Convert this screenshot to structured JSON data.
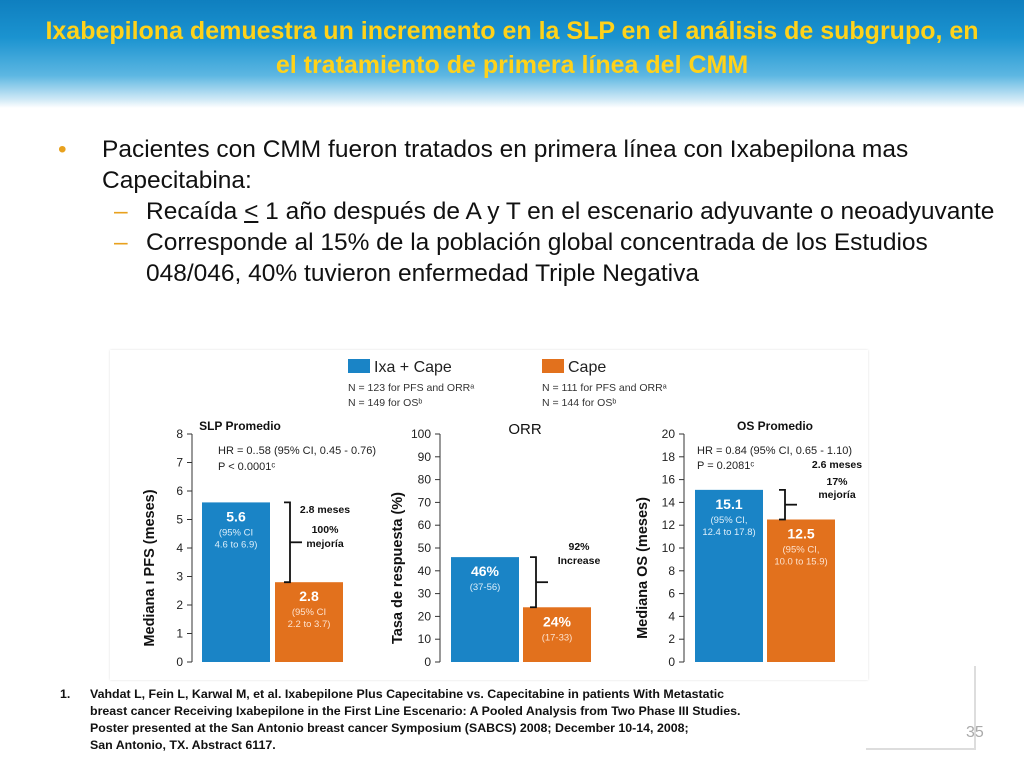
{
  "slide": {
    "title": "Ixabepilona demuestra un incremento en la SLP en el análisis de subgrupo, en el tratamiento de primera línea del CMM",
    "bullet1": "Pacientes con CMM fueron tratados en primera línea con Ixabepilona mas Capecitabina:",
    "sub1_pre": "Recaída ",
    "sub1_le": "<",
    "sub1_post": " 1 año después de A y T en el escenario adyuvante o neoadyuvante",
    "sub2": "Corresponde al 15% de la población global concentrada de los Estudios 048/046, 40% tuvieron enfermedad Triple Negativa",
    "bullet_marker": "•",
    "dash_marker": "–",
    "ref_num": "1.",
    "ref_lines": [
      "Vahdat L, Fein L, Karwal M, et al. Ixabepilone Plus Capecitabine vs. Capecitabine in patients With Metastatic",
      "breast cancer Receiving Ixabepilone in the First Line Escenario: A Pooled Analysis from Two Phase III Studies.",
      "Poster presented at the San Antonio breast cancer Symposium (SABCS) 2008; December 10-14, 2008;",
      "San Antonio, TX. Abstract 6117."
    ],
    "page_number": "35"
  },
  "legend": {
    "ixa": {
      "name": "Ixa + Cape",
      "n1": "N = 123 for PFS and ORRᵃ",
      "n2": "N = 149 for OSᵇ"
    },
    "cape": {
      "name": "Cape",
      "n1": "N = 111 for PFS and ORRᵃ",
      "n2": "N = 144 for OSᵇ"
    }
  },
  "colors": {
    "ixa": "#1a84c6",
    "cape": "#e2711d",
    "title": "#ffd21a",
    "bullet": "#e8a11e"
  },
  "chart_data": [
    {
      "type": "bar",
      "title": "SLP Promedio",
      "ylabel": "Mediana ı PFS (meses)",
      "ylim": [
        0,
        8
      ],
      "ticks": [
        "0",
        "1",
        "2",
        "3",
        "4",
        "5",
        "6",
        "7",
        "8"
      ],
      "series": [
        {
          "name": "Ixa + Cape",
          "value": 5.6,
          "label": "5.6",
          "ci": [
            "(95% CI",
            "4.6 to 6.9)"
          ]
        },
        {
          "name": "Cape",
          "value": 2.8,
          "label": "2.8",
          "ci": [
            "(95% CI",
            "2.2 to 3.7)"
          ]
        }
      ],
      "stats": [
        "HR = 0..58 (95% CI, 0.45 - 0.76)",
        "P  < 0.0001ᶜ"
      ],
      "annotation": [
        "2.8 meses",
        "100%",
        "mejoría"
      ]
    },
    {
      "type": "bar",
      "title": "ORR",
      "ylabel": "Tasa de respuesta (%)",
      "ylim": [
        0,
        100
      ],
      "ticks": [
        "0",
        "10",
        "20",
        "30",
        "40",
        "50",
        "60",
        "70",
        "80",
        "90",
        "100"
      ],
      "series": [
        {
          "name": "Ixa + Cape",
          "value": 46,
          "label": "46%",
          "ci": [
            "(37-56)"
          ]
        },
        {
          "name": "Cape",
          "value": 24,
          "label": "24%",
          "ci": [
            "(17-33)"
          ]
        }
      ],
      "stats": [],
      "annotation": [
        "92%",
        "Increase"
      ]
    },
    {
      "type": "bar",
      "title": "OS Promedio",
      "ylabel": "Mediana OS (meses)",
      "ylim": [
        0,
        20
      ],
      "ticks": [
        "0",
        "2",
        "4",
        "6",
        "8",
        "10",
        "12",
        "14",
        "16",
        "18",
        "20"
      ],
      "series": [
        {
          "name": "Ixa + Cape",
          "value": 15.1,
          "label": "15.1",
          "ci": [
            "(95% CI,",
            "12.4 to 17.8)"
          ]
        },
        {
          "name": "Cape",
          "value": 12.5,
          "label": "12.5",
          "ci": [
            "(95% CI,",
            "10.0 to 15.9)"
          ]
        }
      ],
      "stats": [
        "HR = 0.84 (95% CI, 0.65 - 1.10)",
        "P = 0.2081ᶜ"
      ],
      "annotation": [
        "2.6 meses",
        "17%",
        "mejoría"
      ]
    }
  ]
}
